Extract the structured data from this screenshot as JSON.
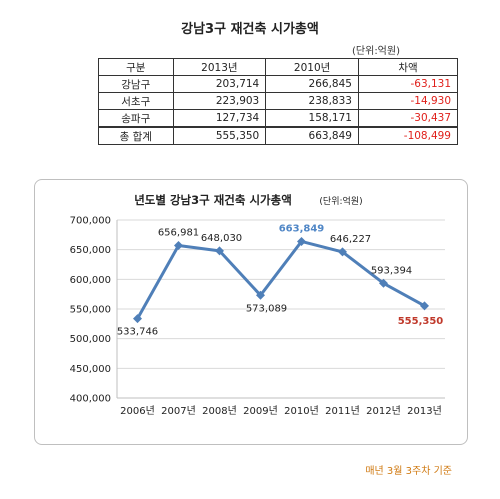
{
  "title": "강남3구 재건축 시가총액",
  "unit_label": "(단위:억원)",
  "table": {
    "headers": [
      "구분",
      "2013년",
      "2010년",
      "차액"
    ],
    "rows": [
      {
        "label": "강남구",
        "v2013": "203,714",
        "v2010": "266,845",
        "diff": "-63,131"
      },
      {
        "label": "서초구",
        "v2013": "223,903",
        "v2010": "238,833",
        "diff": "-14,930"
      },
      {
        "label": "송파구",
        "v2013": "127,734",
        "v2010": "158,171",
        "diff": "-30,437"
      },
      {
        "label": "총 합계",
        "v2013": "555,350",
        "v2010": "663,849",
        "diff": "-108,499"
      }
    ]
  },
  "chart_data": {
    "type": "line",
    "title": "년도별 강남3구 재건축 시가총액",
    "title_unit": "(단위:억원)",
    "categories": [
      "2006년",
      "2007년",
      "2008년",
      "2009년",
      "2010년",
      "2011년",
      "2012년",
      "2013년"
    ],
    "series": [
      {
        "values": [
          533746,
          656981,
          648030,
          573089,
          663849,
          646227,
          593394,
          555350
        ],
        "labels": [
          "533,746",
          "656,981",
          "648,030",
          "573,089",
          "663,849",
          "646,227",
          "593,394",
          "555,350"
        ]
      }
    ],
    "ylim": [
      400000,
      700000
    ],
    "yticks": [
      400000,
      450000,
      500000,
      550000,
      600000,
      650000,
      700000
    ],
    "ytick_labels": [
      "400,000",
      "450,000",
      "500,000",
      "550,000",
      "600,000",
      "650,000",
      "700,000"
    ],
    "grid": true,
    "line_color": "#4f7fb8",
    "highlight_colors": {
      "max": "#4f86c6",
      "last": "#c0392b"
    }
  },
  "footnote": "매년 3월 3주차 기준"
}
